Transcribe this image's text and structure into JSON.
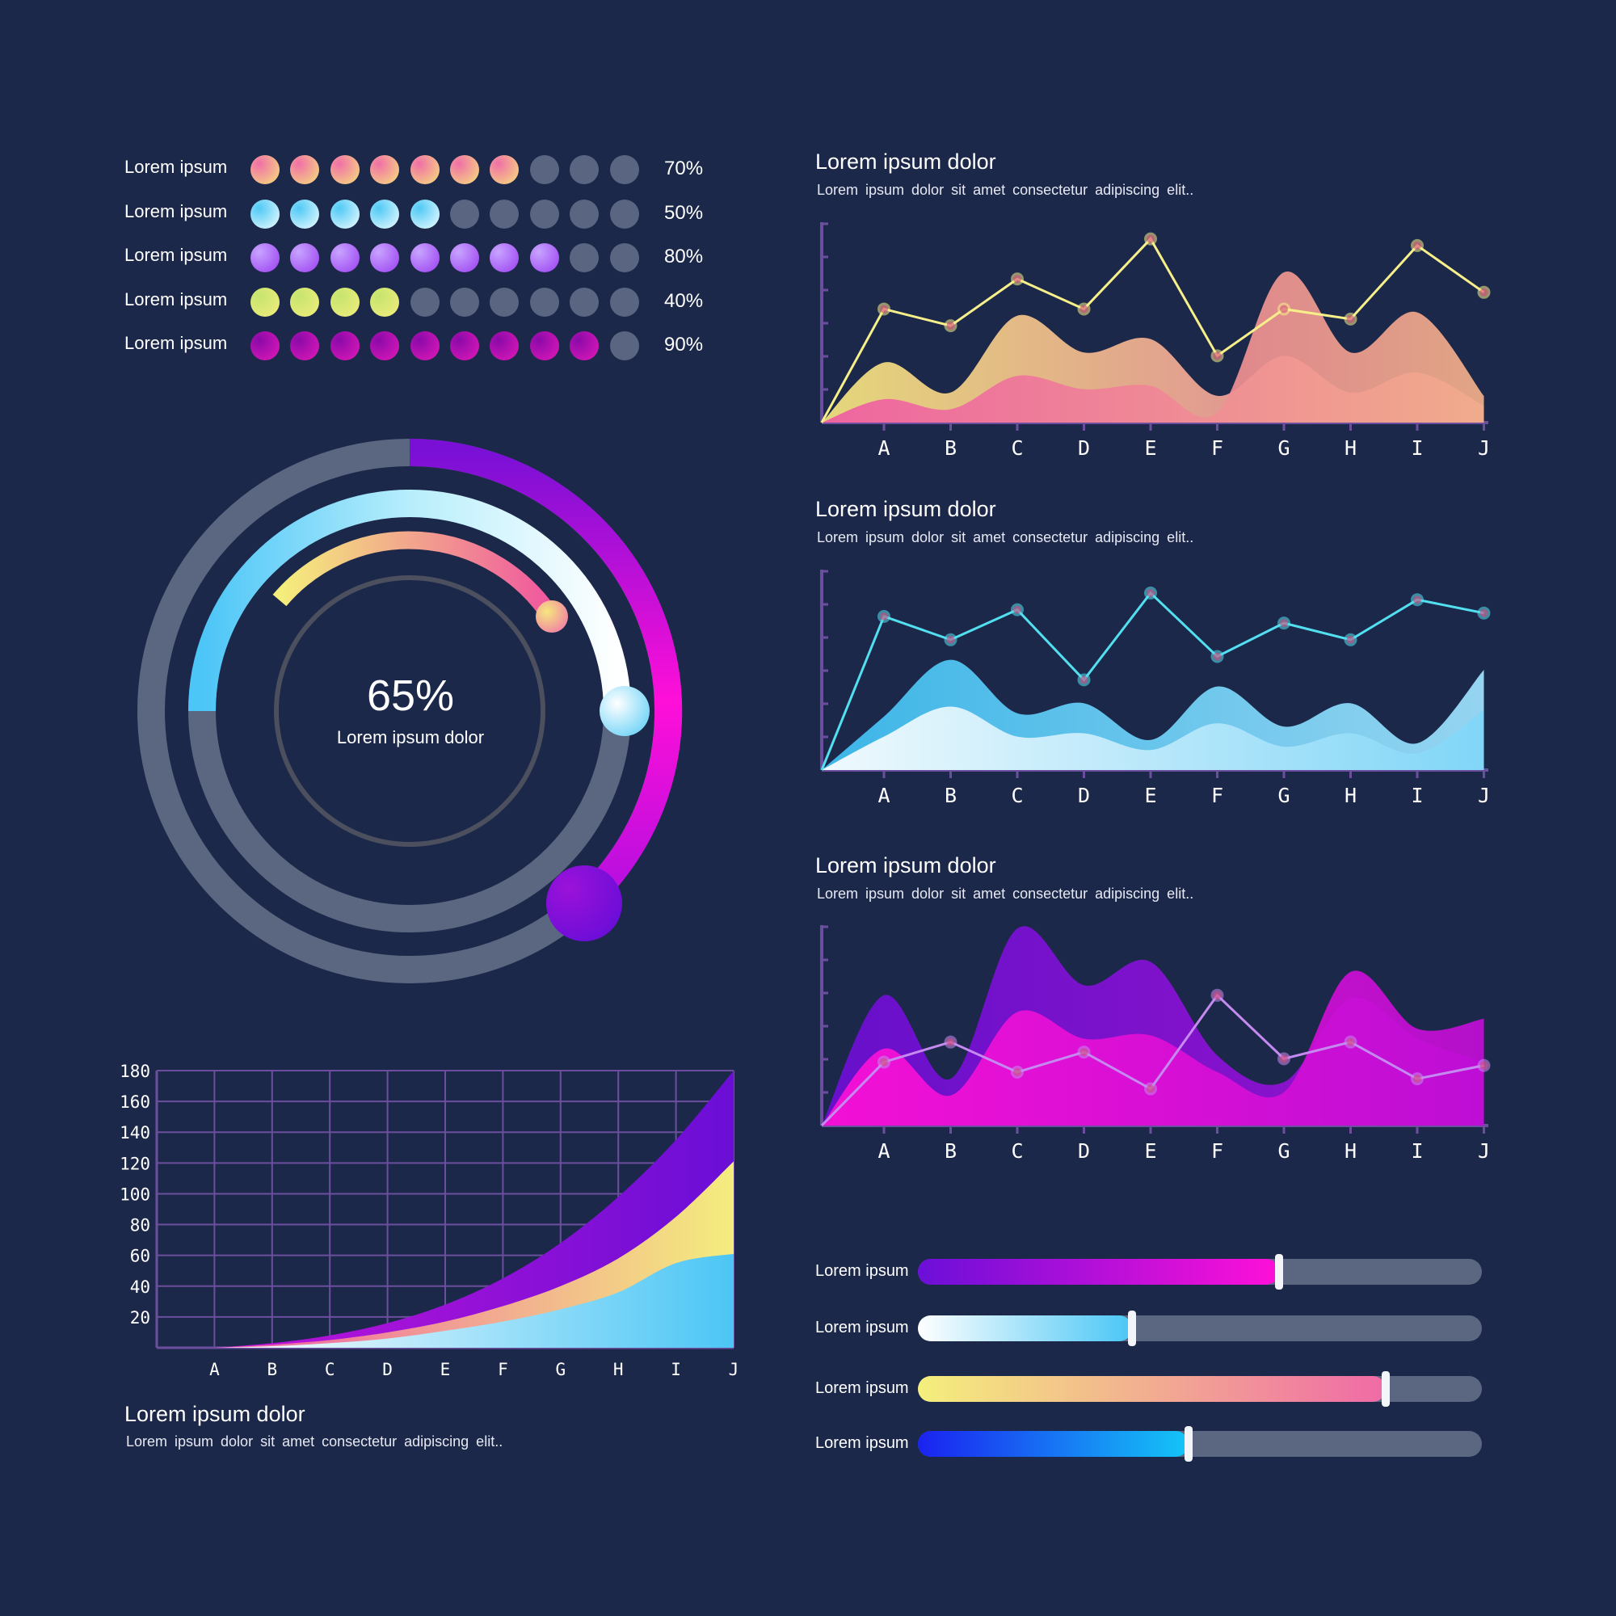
{
  "dot_matrix": {
    "total_dots": 10,
    "inactive_color": "#596581",
    "rows": [
      {
        "label": "Lorem ipsum",
        "percent": "70%",
        "filled": 7,
        "colors": [
          "#f6e27b",
          "#f06fa7"
        ]
      },
      {
        "label": "Lorem ipsum",
        "percent": "50%",
        "filled": 5,
        "colors": [
          "#f1fdff",
          "#4fc9f5"
        ]
      },
      {
        "label": "Lorem ipsum",
        "percent": "80%",
        "filled": 8,
        "colors": [
          "#9a3df0",
          "#c8a4ff"
        ]
      },
      {
        "label": "Lorem ipsum",
        "percent": "40%",
        "filled": 4,
        "colors": [
          "#f2ed7c",
          "#c6e46f"
        ]
      },
      {
        "label": "Lorem ipsum",
        "percent": "90%",
        "filled": 9,
        "colors": [
          "#e319b9",
          "#8a0aa8"
        ]
      }
    ]
  },
  "gauge": {
    "value": "65%",
    "label": "Lorem ipsum dolor"
  },
  "area_chart_1": {
    "title": "Lorem ipsum dolor",
    "subtitle": "Lorem  ipsum  dolor  sit  amet consectetur adipiscing elit.."
  },
  "area_chart_2": {
    "title": "Lorem ipsum dolor",
    "subtitle": "Lorem  ipsum  dolor  sit  amet consectetur adipiscing elit.."
  },
  "area_chart_3": {
    "title": "Lorem ipsum dolor",
    "subtitle": "Lorem  ipsum  dolor  sit  amet consectetur adipiscing elit.."
  },
  "growth_chart": {
    "title": "Lorem ipsum dolor",
    "subtitle": "Lorem  ipsum  dolor  sit  amet consectetur adipiscing elit.."
  },
  "sliders": [
    {
      "label": "Lorem ipsum",
      "value": 0.64,
      "gradient": [
        "#6b0fd8",
        "#ff10d8"
      ]
    },
    {
      "label": "Lorem ipsum",
      "value": 0.38,
      "gradient": [
        "#ffffff",
        "#49c6f5"
      ]
    },
    {
      "label": "Lorem ipsum",
      "value": 0.83,
      "gradient": [
        "#f4ef7c",
        "#f06aa6"
      ]
    },
    {
      "label": "Lorem ipsum",
      "value": 0.48,
      "gradient": [
        "#1a22f0",
        "#14c6f7"
      ]
    }
  ],
  "chart_data": [
    {
      "type": "area",
      "categories": [
        "A",
        "B",
        "C",
        "D",
        "E",
        "F",
        "G",
        "H",
        "I",
        "J"
      ],
      "ylim": [
        0,
        6
      ],
      "series": [
        {
          "kind": "line",
          "color": "#f7f08a",
          "values": [
            3.4,
            2.9,
            4.3,
            3.4,
            5.5,
            2.0,
            3.4,
            3.1,
            5.3,
            3.9
          ]
        },
        {
          "kind": "area",
          "colors": [
            "#f6e77f",
            "#f07aa6"
          ],
          "values": [
            1.8,
            0.9,
            3.2,
            2.1,
            2.5,
            0.8,
            2.0,
            0.9,
            1.5,
            0.5
          ]
        },
        {
          "kind": "area",
          "colors": [
            "#ee5ca3",
            "#f2b08a"
          ],
          "values": [
            0.7,
            0.4,
            1.4,
            1.0,
            1.1,
            0.3,
            4.5,
            2.1,
            3.3,
            0.8
          ]
        }
      ]
    },
    {
      "type": "area",
      "categories": [
        "A",
        "B",
        "C",
        "D",
        "E",
        "F",
        "G",
        "H",
        "I",
        "J"
      ],
      "ylim": [
        0,
        6
      ],
      "series": [
        {
          "kind": "line",
          "color": "#52e0f0",
          "values": [
            4.6,
            3.9,
            4.8,
            2.7,
            5.3,
            3.4,
            4.4,
            3.9,
            5.1,
            4.7
          ]
        },
        {
          "kind": "area",
          "colors": [
            "#3fc2f5",
            "#9fe3ff"
          ],
          "values": [
            1.6,
            3.3,
            1.7,
            2.0,
            0.9,
            2.5,
            1.3,
            2.0,
            0.8,
            3.0
          ]
        },
        {
          "kind": "area",
          "colors": [
            "#ffffff",
            "#7fd6f8"
          ],
          "values": [
            1.0,
            1.9,
            1.0,
            1.1,
            0.6,
            1.4,
            0.7,
            1.1,
            0.5,
            1.8
          ]
        }
      ]
    },
    {
      "type": "area",
      "categories": [
        "A",
        "B",
        "C",
        "D",
        "E",
        "F",
        "G",
        "H",
        "I",
        "J"
      ],
      "ylim": [
        0,
        6
      ],
      "series": [
        {
          "kind": "area",
          "colors": [
            "#6d0ed6",
            "#a012d6"
          ],
          "values": [
            3.9,
            1.4,
            5.9,
            4.2,
            4.9,
            2.1,
            1.3,
            3.8,
            2.6,
            1.9
          ]
        },
        {
          "kind": "area",
          "colors": [
            "#ff10d6",
            "#c10ed6"
          ],
          "values": [
            2.3,
            0.9,
            3.4,
            2.6,
            2.7,
            1.6,
            1.0,
            4.6,
            2.9,
            3.2
          ]
        },
        {
          "kind": "line",
          "color": "#c58af0",
          "values": [
            1.9,
            2.5,
            1.6,
            2.2,
            1.1,
            3.9,
            2.0,
            2.5,
            1.4,
            1.8
          ]
        }
      ]
    },
    {
      "type": "area",
      "categories": [
        "A",
        "B",
        "C",
        "D",
        "E",
        "F",
        "G",
        "H",
        "I",
        "J"
      ],
      "yticks": [
        20,
        40,
        60,
        80,
        100,
        120,
        140,
        160,
        180
      ],
      "ylim": [
        0,
        180
      ],
      "series": [
        {
          "kind": "area",
          "colors": [
            "#c014d8",
            "#6a0ed6"
          ],
          "values": [
            0,
            3,
            8,
            16,
            28,
            45,
            68,
            98,
            135,
            180
          ]
        },
        {
          "kind": "area",
          "colors": [
            "#ef5ca6",
            "#f4ed7e"
          ],
          "values": [
            0,
            2,
            5,
            10,
            17,
            27,
            40,
            58,
            85,
            121
          ]
        },
        {
          "kind": "area",
          "colors": [
            "#ffffff",
            "#4cc6f5"
          ],
          "values": [
            0,
            1,
            3,
            6,
            11,
            17,
            25,
            36,
            55,
            61
          ]
        }
      ]
    }
  ]
}
